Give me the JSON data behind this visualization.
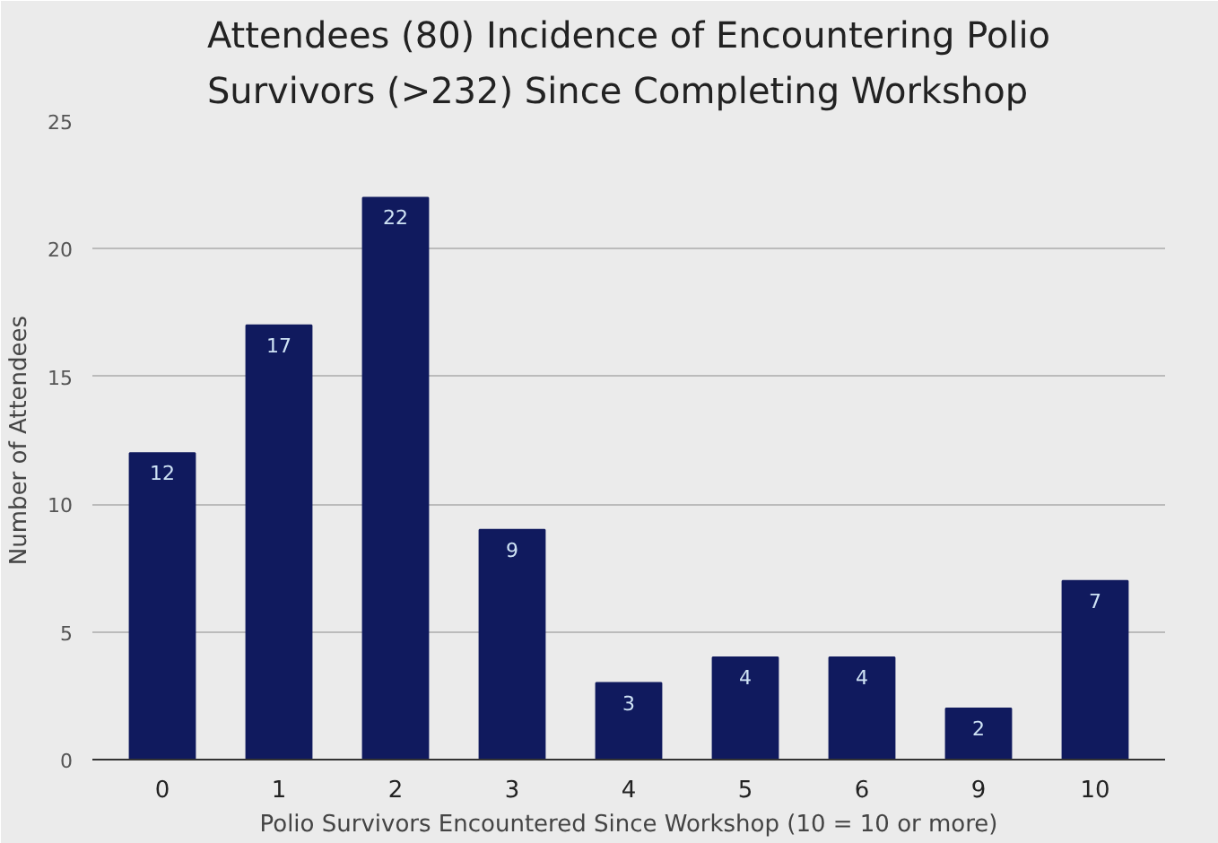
{
  "chart_data": {
    "type": "bar",
    "title": "Attendees (80) Incidence of Encountering Polio\nSurvivors (>232) Since Completing Workshop",
    "xlabel": "Polio Survivors Encountered Since Workshop (10 = 10 or more)",
    "ylabel": "Number of Attendees",
    "categories": [
      "0",
      "1",
      "2",
      "3",
      "4",
      "5",
      "6",
      "9",
      "10"
    ],
    "values": [
      12,
      17,
      22,
      9,
      3,
      4,
      4,
      2,
      7
    ],
    "color": "#101a5e",
    "ylim": [
      0,
      25
    ],
    "yticks": [
      0,
      5,
      10,
      15,
      20,
      25
    ],
    "grid": "y",
    "data_labels": true
  }
}
